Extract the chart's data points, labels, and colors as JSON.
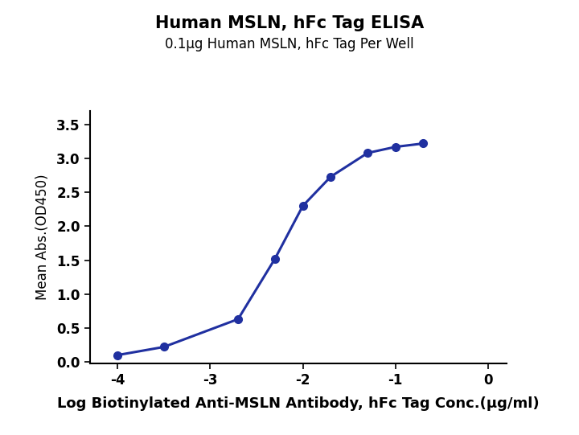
{
  "title": "Human MSLN, hFc Tag ELISA",
  "subtitle": "0.1μg Human MSLN, hFc Tag Per Well",
  "xlabel": "Log Biotinylated Anti-MSLN Antibody, hFc Tag Conc.(μg/ml)",
  "ylabel": "Mean Abs.(OD450)",
  "x_data": [
    -4.0,
    -3.5,
    -2.699,
    -2.301,
    -2.0,
    -1.699,
    -1.301,
    -1.0,
    -0.699
  ],
  "y_data": [
    0.1,
    0.22,
    0.63,
    1.52,
    2.3,
    2.73,
    3.08,
    3.17,
    3.22
  ],
  "xlim": [
    -4.3,
    0.2
  ],
  "ylim": [
    -0.02,
    3.7
  ],
  "xticks": [
    -4,
    -3,
    -2,
    -1,
    0
  ],
  "yticks": [
    0.0,
    0.5,
    1.0,
    1.5,
    2.0,
    2.5,
    3.0,
    3.5
  ],
  "line_color": "#2030a0",
  "marker_color": "#2030a0",
  "marker_size": 7,
  "line_width": 2.2,
  "title_fontsize": 15,
  "subtitle_fontsize": 12,
  "xlabel_fontsize": 13,
  "ylabel_fontsize": 12,
  "tick_fontsize": 12,
  "background_color": "#ffffff",
  "title_fontweight": "bold",
  "xlabel_fontweight": "bold"
}
